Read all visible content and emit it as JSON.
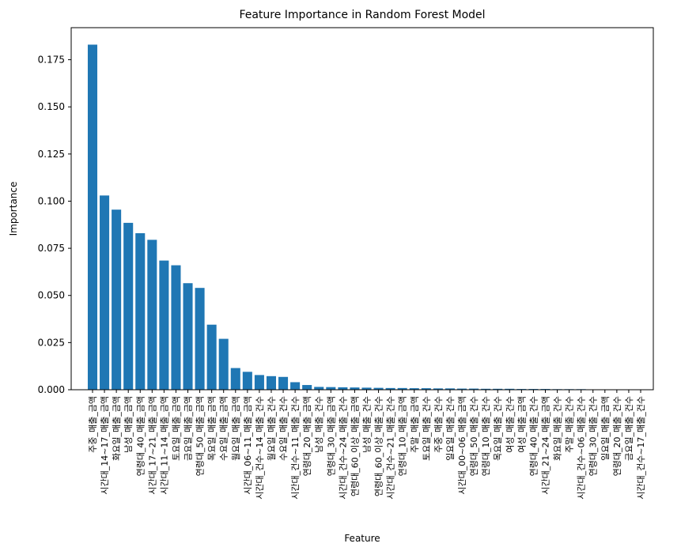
{
  "chart_data": {
    "type": "bar",
    "title": "Feature Importance in Random Forest Model",
    "xlabel": "Feature",
    "ylabel": "Importance",
    "ylim": [
      0,
      0.192
    ],
    "yticks": [
      "0.000",
      "0.025",
      "0.050",
      "0.075",
      "0.100",
      "0.125",
      "0.150",
      "0.175"
    ],
    "bar_color": "#1f77b4",
    "categories": [
      "주중_매출_금액",
      "시간대_14~17_매출_금액",
      "화요일_매출_금액",
      "남성_매출_금액",
      "연령대_40_매출_금액",
      "시간대_17~21_매출_금액",
      "시간대_11~14_매출_금액",
      "토요일_매출_금액",
      "금요일_매출_금액",
      "연령대_50_매출_금액",
      "목요일_매출_금액",
      "수요일_매출_금액",
      "월요일_매출_금액",
      "시간대_06~11_매출_금액",
      "시간대_건수~14_매출_건수",
      "월요일_매출_건수",
      "수요일_매출_건수",
      "시간대_건수~11_매출_건수",
      "연령대_20_매출_금액",
      "남성_매출_건수",
      "연령대_30_매출_금액",
      "시간대_건수~24_매출_건수",
      "연령대_60_이상_매출_금액",
      "남성_매출_건수",
      "연령대_60_이상_매출_건수",
      "시간대_건수~21_매출_건수",
      "연령대_10_매출_금액",
      "주말_매출_금액",
      "토요일_매출_건수",
      "주중_매출_건수",
      "일요일_매출_건수",
      "시간대_00~06_매출_금액",
      "연령대_50_매출_건수",
      "연령대_10_매출_건수",
      "목요일_매출_건수",
      "여성_매출_건수",
      "여성_매출_금액",
      "연령대_40_매출_건수",
      "시간대_21~24_매출_금액",
      "화요일_매출_건수",
      "주말_매출_건수",
      "시간대_건수~06_매출_건수",
      "연령대_30_매출_건수",
      "일요일_매출_금액",
      "연령대_20_매출_건수",
      "금요일_매출_건수",
      "시간대_건수~17_매출_건수"
    ],
    "values": [
      0.183,
      0.103,
      0.0955,
      0.0885,
      0.083,
      0.0795,
      0.0685,
      0.066,
      0.0565,
      0.054,
      0.0345,
      0.027,
      0.0115,
      0.0095,
      0.0078,
      0.0072,
      0.0068,
      0.004,
      0.0025,
      0.0015,
      0.0014,
      0.0013,
      0.0012,
      0.0011,
      0.001,
      0.0009,
      0.0009,
      0.0008,
      0.0008,
      0.0007,
      0.0007,
      0.0006,
      0.0006,
      0.0005,
      0.0005,
      0.0005,
      0.0004,
      0.0004,
      0.0004,
      0.0003,
      0.0003,
      0.0003,
      0.0002,
      0.0002,
      0.0001,
      0.0001,
      0.0001
    ]
  }
}
